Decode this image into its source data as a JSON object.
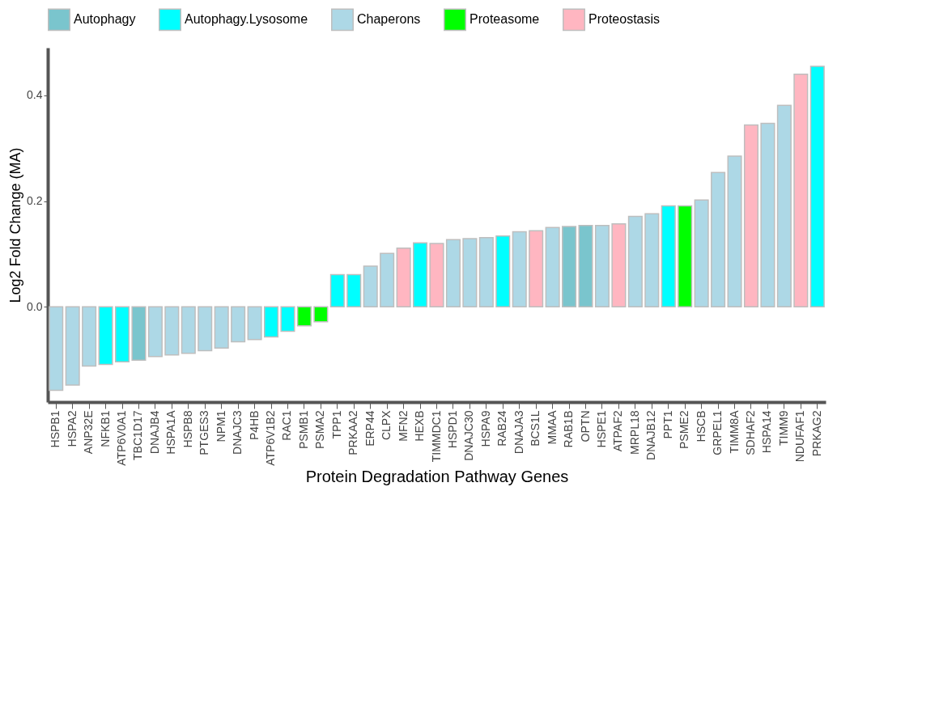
{
  "chart_data": {
    "type": "bar",
    "xlabel": "Protein Degradation Pathway Genes",
    "ylabel": "Log2 Fold Change (MA)",
    "categories": [
      "HSPB1",
      "HSPA2",
      "ANP32E",
      "NFKB1",
      "ATP6V0A1",
      "TBC1D17",
      "DNAJB4",
      "HSPA1A",
      "HSPB8",
      "PTGES3",
      "NPM1",
      "DNAJC3",
      "P4HB",
      "ATP6V1B2",
      "RAC1",
      "PSMB1",
      "PSMA2",
      "TPP1",
      "PRKAA2",
      "ERP44",
      "CLPX",
      "MFN2",
      "HEXB",
      "TIMMDC1",
      "HSPD1",
      "DNAJC30",
      "HSPA9",
      "RAB24",
      "DNAJA3",
      "BCS1L",
      "MMAA",
      "RAB1B",
      "OPTN",
      "HSPE1",
      "ATPAF2",
      "MRPL18",
      "DNAJB12",
      "PPT1",
      "PSME2",
      "HSCB",
      "GRPEL1",
      "TIMM8A",
      "SDHAF2",
      "HSPA14",
      "TIMM9",
      "NDUFAF1",
      "PRKAG2"
    ],
    "series": [
      {
        "name": "Autophagy",
        "color": "#7ac5cd",
        "values": [
          null,
          null,
          null,
          null,
          null,
          -0.101,
          null,
          null,
          null,
          null,
          null,
          null,
          null,
          null,
          null,
          null,
          null,
          null,
          null,
          null,
          null,
          null,
          null,
          null,
          null,
          null,
          null,
          null,
          null,
          null,
          null,
          0.152,
          0.154,
          null,
          null,
          null,
          null,
          null,
          null,
          null,
          null,
          null,
          null,
          null,
          null,
          null,
          null
        ]
      },
      {
        "name": "Autophagy.Lysosome",
        "color": "#00ffff",
        "values": [
          null,
          null,
          null,
          -0.109,
          -0.104,
          null,
          null,
          null,
          null,
          null,
          null,
          null,
          null,
          -0.057,
          -0.046,
          null,
          null,
          0.061,
          0.061,
          null,
          null,
          null,
          0.121,
          null,
          null,
          null,
          null,
          0.134,
          null,
          null,
          null,
          null,
          null,
          null,
          null,
          null,
          null,
          0.191,
          null,
          null,
          null,
          null,
          null,
          null,
          null,
          null,
          0.455
        ]
      },
      {
        "name": "Chaperons",
        "color": "#add8e6",
        "values": [
          -0.158,
          -0.148,
          -0.112,
          null,
          null,
          null,
          -0.094,
          -0.091,
          -0.088,
          -0.083,
          -0.078,
          -0.066,
          -0.062,
          null,
          null,
          null,
          null,
          null,
          null,
          0.077,
          0.101,
          null,
          null,
          null,
          0.127,
          0.129,
          0.131,
          null,
          0.142,
          null,
          0.15,
          null,
          null,
          0.154,
          null,
          0.171,
          0.176,
          null,
          null,
          0.202,
          0.254,
          0.285,
          null,
          0.347,
          0.381,
          null,
          null
        ]
      },
      {
        "name": "Proteasome",
        "color": "#00ff00",
        "values": [
          null,
          null,
          null,
          null,
          null,
          null,
          null,
          null,
          null,
          null,
          null,
          null,
          null,
          null,
          null,
          -0.036,
          -0.028,
          null,
          null,
          null,
          null,
          null,
          null,
          null,
          null,
          null,
          null,
          null,
          null,
          null,
          null,
          null,
          null,
          null,
          null,
          null,
          null,
          null,
          0.191,
          null,
          null,
          null,
          null,
          null,
          null,
          null,
          null
        ]
      },
      {
        "name": "Proteostasis",
        "color": "#ffb6c1",
        "values": [
          null,
          null,
          null,
          null,
          null,
          null,
          null,
          null,
          null,
          null,
          null,
          null,
          null,
          null,
          null,
          null,
          null,
          null,
          null,
          null,
          null,
          0.111,
          null,
          0.12,
          null,
          null,
          null,
          null,
          null,
          0.144,
          null,
          null,
          null,
          null,
          0.157,
          null,
          null,
          null,
          null,
          null,
          null,
          null,
          0.344,
          null,
          null,
          0.44,
          null
        ]
      }
    ],
    "ylim": [
      -0.18,
      0.49
    ],
    "yticks": [
      {
        "value": 0,
        "label": "0.0"
      },
      {
        "value": 0.2,
        "label": "0.2"
      },
      {
        "value": 0.4,
        "label": "0.4"
      }
    ],
    "grid": false,
    "legend": "top"
  }
}
